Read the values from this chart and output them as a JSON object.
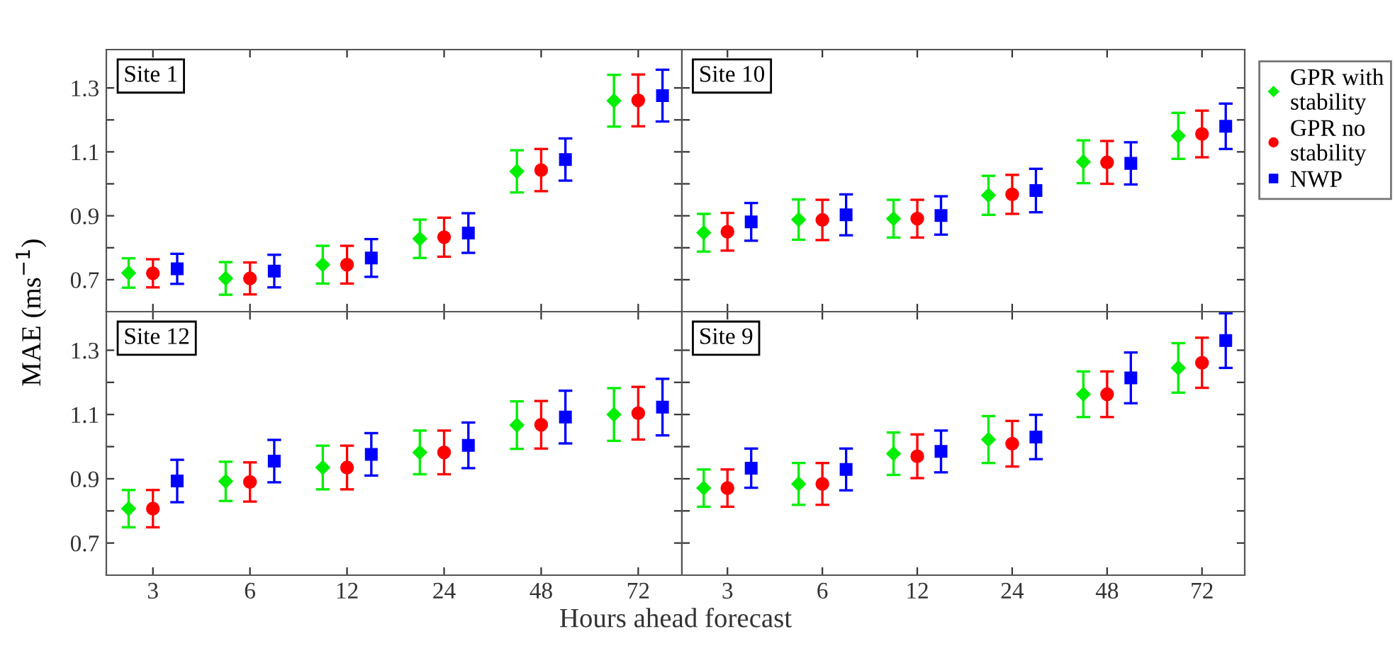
{
  "chart_data": [
    {
      "type": "scatter",
      "title": "Site 1",
      "ylabel": "MAE (ms$^{−1}$)",
      "categories": [
        "3",
        "6",
        "12",
        "24",
        "48",
        "72"
      ],
      "ylim": [
        0.6,
        1.42
      ],
      "yticks": [
        0.7,
        {
          "value": 0.8,
          "label": null
        },
        0.9,
        {
          "value": 1.0,
          "label": null
        },
        1.1,
        {
          "value": 1.2,
          "label": null
        },
        1.3
      ],
      "tick_labels": "y",
      "grid": false,
      "legend": false,
      "series": [
        {
          "color": "#00ee00",
          "marker": "diamond",
          "values": [
            0.721,
            0.704,
            0.747,
            0.828,
            1.039,
            1.26
          ],
          "errors": [
            0.046,
            0.051,
            0.059,
            0.06,
            0.066,
            0.081
          ]
        },
        {
          "color": "#ff0000",
          "marker": "circle",
          "values": [
            0.72,
            0.704,
            0.747,
            0.833,
            1.043,
            1.261
          ],
          "errors": [
            0.044,
            0.05,
            0.059,
            0.061,
            0.066,
            0.081
          ]
        },
        {
          "color": "#0000ff",
          "marker": "square",
          "values": [
            0.734,
            0.727,
            0.768,
            0.846,
            1.076,
            1.276
          ],
          "errors": [
            0.047,
            0.051,
            0.059,
            0.062,
            0.066,
            0.081
          ]
        }
      ]
    },
    {
      "type": "scatter",
      "title": "Site 10",
      "categories": [
        "3",
        "6",
        "12",
        "24",
        "48",
        "72"
      ],
      "ylim": [
        0.6,
        1.42
      ],
      "yticks": [
        0.7,
        {
          "value": 0.8,
          "label": null
        },
        0.9,
        {
          "value": 1.0,
          "label": null
        },
        1.1,
        {
          "value": 1.2,
          "label": null
        },
        1.3
      ],
      "tick_labels": false,
      "grid": false,
      "legend": "right",
      "series": [
        {
          "name": "GPR with stability",
          "color": "#00ee00",
          "marker": "diamond",
          "values": [
            0.847,
            0.888,
            0.891,
            0.964,
            1.069,
            1.15
          ],
          "errors": [
            0.059,
            0.063,
            0.059,
            0.061,
            0.067,
            0.072
          ]
        },
        {
          "name": "GPR no stability",
          "color": "#ff0000",
          "marker": "circle",
          "values": [
            0.85,
            0.887,
            0.891,
            0.967,
            1.067,
            1.156
          ],
          "errors": [
            0.059,
            0.063,
            0.059,
            0.061,
            0.067,
            0.073
          ]
        },
        {
          "name": "NWP",
          "color": "#0000ff",
          "marker": "square",
          "values": [
            0.881,
            0.903,
            0.901,
            0.979,
            1.064,
            1.18
          ],
          "errors": [
            0.059,
            0.064,
            0.06,
            0.068,
            0.066,
            0.071
          ]
        }
      ]
    },
    {
      "type": "scatter",
      "title": "Site 12",
      "xlabel": "Hours ahead forecast",
      "categories": [
        "3",
        "6",
        "12",
        "24",
        "48",
        "72"
      ],
      "ylim": [
        0.6,
        1.42
      ],
      "yticks": [
        0.7,
        {
          "value": 0.8,
          "label": null
        },
        0.9,
        {
          "value": 1.0,
          "label": null
        },
        1.1,
        {
          "value": 1.2,
          "label": null
        },
        1.3
      ],
      "grid": false,
      "legend": false,
      "series": [
        {
          "color": "#00ee00",
          "marker": "diamond",
          "values": [
            0.807,
            0.892,
            0.935,
            0.982,
            1.067,
            1.1
          ],
          "errors": [
            0.058,
            0.061,
            0.068,
            0.068,
            0.074,
            0.082
          ]
        },
        {
          "color": "#ff0000",
          "marker": "circle",
          "values": [
            0.807,
            0.89,
            0.935,
            0.982,
            1.068,
            1.104
          ],
          "errors": [
            0.058,
            0.061,
            0.068,
            0.068,
            0.074,
            0.082
          ]
        },
        {
          "color": "#0000ff",
          "marker": "square",
          "values": [
            0.893,
            0.955,
            0.976,
            1.004,
            1.092,
            1.123
          ],
          "errors": [
            0.066,
            0.066,
            0.066,
            0.071,
            0.082,
            0.088
          ]
        }
      ]
    },
    {
      "type": "scatter",
      "title": "Site 9",
      "categories": [
        "3",
        "6",
        "12",
        "24",
        "48",
        "72"
      ],
      "ylim": [
        0.6,
        1.42
      ],
      "yticks": [
        0.7,
        {
          "value": 0.8,
          "label": null
        },
        0.9,
        {
          "value": 1.0,
          "label": null
        },
        1.1,
        {
          "value": 1.2,
          "label": null
        },
        1.3
      ],
      "tick_labels": "x",
      "grid": false,
      "legend": false,
      "series": [
        {
          "color": "#00ee00",
          "marker": "diamond",
          "values": [
            0.871,
            0.884,
            0.978,
            1.022,
            1.163,
            1.245
          ],
          "errors": [
            0.058,
            0.065,
            0.066,
            0.073,
            0.071,
            0.077
          ]
        },
        {
          "color": "#ff0000",
          "marker": "circle",
          "values": [
            0.871,
            0.884,
            0.97,
            1.009,
            1.163,
            1.261
          ],
          "errors": [
            0.058,
            0.065,
            0.068,
            0.071,
            0.071,
            0.078
          ]
        },
        {
          "color": "#0000ff",
          "marker": "square",
          "values": [
            0.933,
            0.929,
            0.985,
            1.03,
            1.214,
            1.33
          ],
          "errors": [
            0.061,
            0.065,
            0.065,
            0.069,
            0.079,
            0.085
          ]
        }
      ]
    }
  ]
}
